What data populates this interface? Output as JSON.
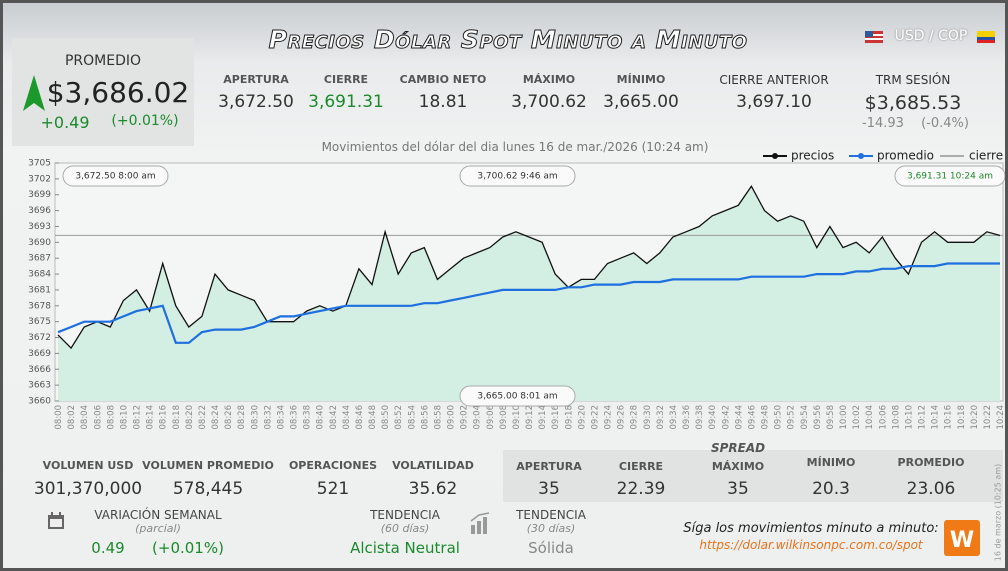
{
  "header": {
    "title": "Precios Dólar Spot Minuto a Minuto",
    "pair": "USD / COP"
  },
  "promedio": {
    "label": "PROMEDIO",
    "value": "$3,686.02",
    "change": "+0.49",
    "change_pct": "(+0.01%)"
  },
  "stats": [
    {
      "label": "APERTURA",
      "value": "3,672.50"
    },
    {
      "label": "CIERRE",
      "value": "3,691.31"
    },
    {
      "label": "CAMBIO NETO",
      "value": "18.81"
    },
    {
      "label": "MÁXIMO",
      "value": "3,700.62"
    },
    {
      "label": "MÍNIMO",
      "value": "3,665.00"
    }
  ],
  "cierre_anterior": {
    "label": "CIERRE ANTERIOR",
    "value": "3,697.10"
  },
  "trm": {
    "label": "TRM SESIÓN",
    "value": "$3,685.53",
    "change": "-14.93",
    "change_pct": "(-0.4%)"
  },
  "chart_data": {
    "type": "line",
    "subtitle": "Movimientos del dólar del dia lunes 16 de mar./2026 (10:24 am)",
    "categories": [
      "08:00",
      "08:02",
      "08:04",
      "08:06",
      "08:08",
      "08:10",
      "08:12",
      "08:14",
      "08:16",
      "08:18",
      "08:20",
      "08:22",
      "08:24",
      "08:26",
      "08:28",
      "08:30",
      "08:32",
      "08:34",
      "08:36",
      "08:38",
      "08:40",
      "08:42",
      "08:44",
      "08:46",
      "08:48",
      "08:50",
      "08:52",
      "08:54",
      "08:56",
      "08:58",
      "09:00",
      "09:02",
      "09:04",
      "09:06",
      "09:08",
      "09:10",
      "09:12",
      "09:14",
      "09:16",
      "09:18",
      "09:20",
      "09:22",
      "09:24",
      "09:26",
      "09:28",
      "09:30",
      "09:32",
      "09:34",
      "09:36",
      "09:38",
      "09:40",
      "09:42",
      "09:44",
      "09:46",
      "09:48",
      "09:50",
      "09:52",
      "09:54",
      "09:56",
      "09:58",
      "10:00",
      "10:02",
      "10:04",
      "10:06",
      "10:08",
      "10:10",
      "10:12",
      "10:14",
      "10:16",
      "10:18",
      "10:20",
      "10:22",
      "10:24"
    ],
    "series": [
      {
        "name": "precios",
        "color": "#111111",
        "values": [
          3672.5,
          3670,
          3674,
          3675,
          3674,
          3679,
          3681,
          3677,
          3686,
          3678,
          3674,
          3676,
          3684,
          3681,
          3680,
          3679,
          3675,
          3675,
          3675,
          3677,
          3678,
          3677,
          3678,
          3685,
          3682,
          3692,
          3684,
          3688,
          3689,
          3683,
          3685,
          3687,
          3688,
          3689,
          3691,
          3692,
          3691,
          3690,
          3684,
          3681.5,
          3683,
          3683,
          3686,
          3687,
          3688,
          3686,
          3688,
          3691,
          3692,
          3693,
          3695,
          3696,
          3697,
          3700.6,
          3696,
          3694,
          3695,
          3694,
          3689,
          3693,
          3689,
          3690,
          3688,
          3691,
          3687,
          3684,
          3690,
          3692,
          3690,
          3690,
          3690,
          3692,
          3691.3
        ]
      },
      {
        "name": "promedio",
        "color": "#1e6fe0",
        "values": [
          3673,
          3674,
          3675,
          3675,
          3675,
          3676,
          3677,
          3677.5,
          3678,
          3671,
          3671,
          3673,
          3673.5,
          3673.5,
          3673.5,
          3674,
          3675,
          3676,
          3676,
          3676.5,
          3677,
          3677.5,
          3678,
          3678,
          3678,
          3678,
          3678,
          3678,
          3678.5,
          3678.5,
          3679,
          3679.5,
          3680,
          3680.5,
          3681,
          3681,
          3681,
          3681,
          3681,
          3681.5,
          3681.5,
          3682,
          3682,
          3682,
          3682.5,
          3682.5,
          3682.5,
          3683,
          3683,
          3683,
          3683,
          3683,
          3683,
          3683.5,
          3683.5,
          3683.5,
          3683.5,
          3683.5,
          3684,
          3684,
          3684,
          3684.5,
          3684.5,
          3685,
          3685,
          3685.5,
          3685.5,
          3685.5,
          3686,
          3686,
          3686,
          3686,
          3686
        ]
      }
    ],
    "reference_line": {
      "name": "cierre",
      "value": 3691.31
    },
    "area_color": "#d3eee3",
    "ylim": [
      3660,
      3705
    ],
    "yticks": [
      3660,
      3663,
      3666,
      3669,
      3672,
      3675,
      3678,
      3681,
      3684,
      3687,
      3690,
      3693,
      3696,
      3699,
      3702,
      3705
    ],
    "grid": false,
    "annotations": [
      "3,672.50  8:00 am",
      "3,700.62  9:46 am",
      "3,665.00  8:01 am",
      "3,691.31  10:24 am"
    ]
  },
  "volume_stats": [
    {
      "label": "VOLUMEN USD",
      "value": "301,370,000"
    },
    {
      "label": "VOLUMEN PROMEDIO",
      "value": "578,445"
    },
    {
      "label": "OPERACIONES",
      "value": "521"
    },
    {
      "label": "VOLATILIDAD",
      "value": "35.62"
    }
  ],
  "spread": {
    "title": "SPREAD",
    "items": [
      {
        "label": "APERTURA",
        "value": "35"
      },
      {
        "label": "CIERRE",
        "value": "22.39"
      },
      {
        "label": "MÁXIMO",
        "value": "35"
      },
      {
        "label": "MÍNIMO",
        "value": "20.3"
      },
      {
        "label": "PROMEDIO",
        "value": "23.06"
      }
    ]
  },
  "variacion": {
    "label": "VARIACIÓN SEMANAL",
    "sub": "(parcial)",
    "value": "0.49",
    "pct": "(+0.01%)"
  },
  "tendencia_60": {
    "label": "TENDENCIA",
    "sub": "(60 días)",
    "value": "Alcista Neutral"
  },
  "tendencia_30": {
    "label": "TENDENCIA",
    "sub": "(30 días)",
    "value": "Sólida"
  },
  "footer": {
    "text": "Síga los movimientos minuto a minuto:",
    "link": "https://dolar.wilkinsonpc.com.co/spot"
  },
  "side_note": "16 de marzo (10:25 am)"
}
